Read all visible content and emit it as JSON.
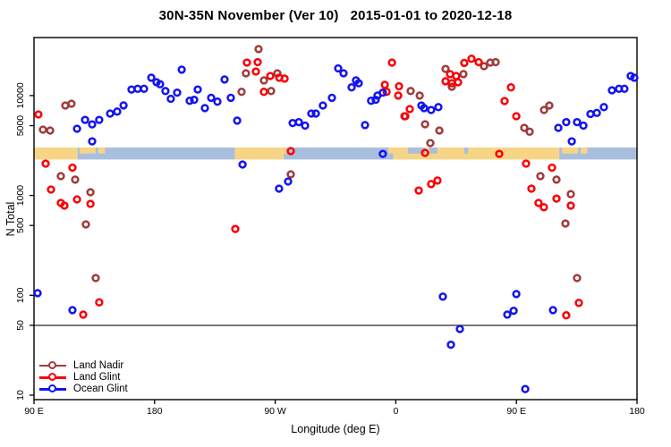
{
  "title": "30N-35N November (Ver 10)   2015-01-01 to 2020-12-18",
  "chart_data": {
    "type": "scatter",
    "title": "30N-35N November (Ver 10)   2015-01-01 to 2020-12-18",
    "xlabel": "Longitude (deg E)",
    "ylabel": "N Total",
    "x_axis": {
      "range_deg": [
        90,
        540
      ],
      "ticks": [
        {
          "lon": 90,
          "label": "90 E"
        },
        {
          "lon": 180,
          "label": "180"
        },
        {
          "lon": 270,
          "label": "90 W"
        },
        {
          "lon": 360,
          "label": "0"
        },
        {
          "lon": 450,
          "label": "90 E"
        },
        {
          "lon": 540,
          "label": "180"
        }
      ]
    },
    "y_axis": {
      "scale": "log10",
      "range": [
        9,
        38000
      ],
      "ticks": [
        10,
        50,
        100,
        500,
        1000,
        5000,
        10000
      ]
    },
    "reference_line_n": 50,
    "grid": "off",
    "legend_position": "bottom-left",
    "legend": [
      {
        "label": "Land Nadir",
        "color": "#a13b3b"
      },
      {
        "label": "Land Glint",
        "color": "#fb0006"
      },
      {
        "label": "Ocean Glint",
        "color": "#1414f0"
      }
    ],
    "map_strip": {
      "n_top": 3020,
      "n_bottom": 2290,
      "land_color": "#f6d586",
      "ocean_color": "#a9bedd",
      "segments": [
        {
          "type": "land",
          "lon": [
            90,
            122.5
          ]
        },
        {
          "type": "ocean",
          "lon": [
            122.5,
            240
          ]
        },
        {
          "type": "land",
          "lon": [
            240,
            280
          ]
        },
        {
          "type": "ocean",
          "lon": [
            280,
            354.5
          ]
        },
        {
          "type": "land",
          "lon": [
            354.5,
            482
          ]
        },
        {
          "type": "ocean",
          "lon": [
            482,
            540
          ]
        }
      ],
      "speckles": [
        {
          "type": "land",
          "lon": [
            124,
            136
          ],
          "part": "top"
        },
        {
          "type": "land",
          "lon": [
            138,
            143
          ],
          "part": "top"
        },
        {
          "type": "ocean",
          "lon": [
            369,
            382
          ],
          "part": "top"
        },
        {
          "type": "ocean",
          "lon": [
            385,
            391
          ],
          "part": "top"
        },
        {
          "type": "land",
          "lon": [
            484,
            496
          ],
          "part": "top"
        },
        {
          "type": "land",
          "lon": [
            498,
            503
          ],
          "part": "top"
        },
        {
          "type": "ocean",
          "lon": [
            276.5,
            280
          ],
          "part": "bottom"
        },
        {
          "type": "ocean",
          "lon": [
            354.5,
            358
          ],
          "part": "bottom"
        },
        {
          "type": "ocean",
          "lon": [
            411,
            414
          ],
          "part": "top"
        }
      ]
    },
    "series": [
      {
        "name": "Land Nadir",
        "color": "#a13b3b",
        "points": [
          [
            96.7,
            4560
          ],
          [
            102,
            4470
          ],
          [
            113.4,
            7960
          ],
          [
            118,
            8290
          ],
          [
            110,
            1560
          ],
          [
            120.7,
            1440
          ],
          [
            132.1,
            1077
          ],
          [
            128.7,
            513
          ],
          [
            136.1,
            149
          ],
          [
            257.6,
            29200
          ],
          [
            248.2,
            16700
          ],
          [
            261.6,
            14200
          ],
          [
            271.6,
            16700
          ],
          [
            266.9,
            11100
          ],
          [
            244.9,
            10900
          ],
          [
            281.6,
            1626
          ],
          [
            371.1,
            11100
          ],
          [
            377.8,
            10000
          ],
          [
            366.4,
            6210
          ],
          [
            381.8,
            5160
          ],
          [
            392.5,
            4470
          ],
          [
            385.8,
            3350
          ],
          [
            397.1,
            18500
          ],
          [
            410.5,
            16400
          ],
          [
            425.8,
            19700
          ],
          [
            430.5,
            21400
          ],
          [
            434.5,
            21600
          ],
          [
            401.8,
            12270
          ],
          [
            455.9,
            4750
          ],
          [
            459.9,
            4350
          ],
          [
            470.6,
            7180
          ],
          [
            474.6,
            7960
          ],
          [
            467.9,
            1560
          ],
          [
            479.9,
            1440
          ],
          [
            490.6,
            1030
          ],
          [
            486.6,
            524
          ],
          [
            495.3,
            149
          ]
        ]
      },
      {
        "name": "Land Glint",
        "color": "#fb0006",
        "points": [
          [
            93.3,
            6470
          ],
          [
            98.7,
            2085
          ],
          [
            118.7,
            1900
          ],
          [
            102.7,
            1146
          ],
          [
            122.1,
            914
          ],
          [
            110,
            841
          ],
          [
            112.7,
            790
          ],
          [
            132.1,
            824
          ],
          [
            138.7,
            85
          ],
          [
            126.7,
            64
          ],
          [
            240.2,
            462
          ],
          [
            248.9,
            21400
          ],
          [
            256.9,
            21600
          ],
          [
            255.6,
            17400
          ],
          [
            266.3,
            15700
          ],
          [
            273,
            15100
          ],
          [
            277,
            14800
          ],
          [
            261.6,
            10900
          ],
          [
            281.6,
            2780
          ],
          [
            357.1,
            21400
          ],
          [
            351.8,
            12800
          ],
          [
            353.1,
            10900
          ],
          [
            362.4,
            12400
          ],
          [
            361.8,
            10000
          ],
          [
            370.4,
            7330
          ],
          [
            367.1,
            6210
          ],
          [
            381.8,
            2670
          ],
          [
            437.2,
            2610
          ],
          [
            391.1,
            1410
          ],
          [
            386.4,
            1300
          ],
          [
            377.1,
            1120
          ],
          [
            411.1,
            21200
          ],
          [
            416.5,
            23400
          ],
          [
            421.8,
            21600
          ],
          [
            400.5,
            16400
          ],
          [
            405.1,
            15700
          ],
          [
            397.1,
            13900
          ],
          [
            401.8,
            13300
          ],
          [
            406.5,
            13600
          ],
          [
            445.9,
            12100
          ],
          [
            441.2,
            8810
          ],
          [
            449.9,
            6210
          ],
          [
            457.2,
            2085
          ],
          [
            476.6,
            1900
          ],
          [
            461.2,
            1170
          ],
          [
            479.9,
            930
          ],
          [
            466.5,
            841
          ],
          [
            470.5,
            762
          ],
          [
            490.6,
            790
          ],
          [
            487.2,
            63
          ],
          [
            496.6,
            84
          ]
        ]
      },
      {
        "name": "Ocean Glint",
        "color": "#1414f0",
        "points": [
          [
            122.1,
            4650
          ],
          [
            128.1,
            5710
          ],
          [
            133.4,
            5150
          ],
          [
            138.7,
            5710
          ],
          [
            133.4,
            3480
          ],
          [
            146.8,
            6610
          ],
          [
            152.1,
            6920
          ],
          [
            156.8,
            7970
          ],
          [
            162.8,
            11500
          ],
          [
            167.4,
            11700
          ],
          [
            172.1,
            11700
          ],
          [
            177.5,
            15100
          ],
          [
            181.5,
            13600
          ],
          [
            184.1,
            13000
          ],
          [
            188.1,
            11100
          ],
          [
            192.1,
            9280
          ],
          [
            196.8,
            10700
          ],
          [
            200.2,
            18200
          ],
          [
            206.2,
            8880
          ],
          [
            212.2,
            11500
          ],
          [
            209.5,
            9070
          ],
          [
            217.5,
            7500
          ],
          [
            222.2,
            9500
          ],
          [
            226.9,
            8700
          ],
          [
            232.2,
            14500
          ],
          [
            236.9,
            9500
          ],
          [
            241.6,
            5620
          ],
          [
            245.6,
            2042
          ],
          [
            279.6,
            1380
          ],
          [
            272.9,
            1170
          ],
          [
            283,
            5310
          ],
          [
            287.6,
            5420
          ],
          [
            292.3,
            5000
          ],
          [
            297,
            6610
          ],
          [
            300.3,
            6610
          ],
          [
            305.6,
            7960
          ],
          [
            312.3,
            9500
          ],
          [
            317,
            18700
          ],
          [
            321,
            16700
          ],
          [
            327,
            12100
          ],
          [
            330.3,
            14200
          ],
          [
            332.3,
            13300
          ],
          [
            341.6,
            8880
          ],
          [
            345,
            9070
          ],
          [
            346.3,
            10000
          ],
          [
            350.3,
            10700
          ],
          [
            337,
            5060
          ],
          [
            350.3,
            2610
          ],
          [
            379.1,
            7960
          ],
          [
            381.1,
            7500
          ],
          [
            386.4,
            7180
          ],
          [
            391.8,
            7660
          ],
          [
            92.7,
            105
          ],
          [
            118.7,
            71
          ],
          [
            395.1,
            97
          ],
          [
            407.8,
            46
          ],
          [
            401.1,
            32
          ],
          [
            449.9,
            103
          ],
          [
            443.2,
            64
          ],
          [
            447.9,
            70
          ],
          [
            477.3,
            71
          ],
          [
            456.6,
            11.5
          ],
          [
            481.3,
            4750
          ],
          [
            487.2,
            5420
          ],
          [
            495.3,
            5420
          ],
          [
            500,
            5000
          ],
          [
            505.3,
            6540
          ],
          [
            510,
            6700
          ],
          [
            515.3,
            7660
          ],
          [
            521.3,
            11300
          ],
          [
            526.6,
            11700
          ],
          [
            530.6,
            11700
          ],
          [
            535.3,
            15700
          ],
          [
            538,
            15100
          ],
          [
            491.3,
            3480
          ]
        ]
      }
    ]
  }
}
